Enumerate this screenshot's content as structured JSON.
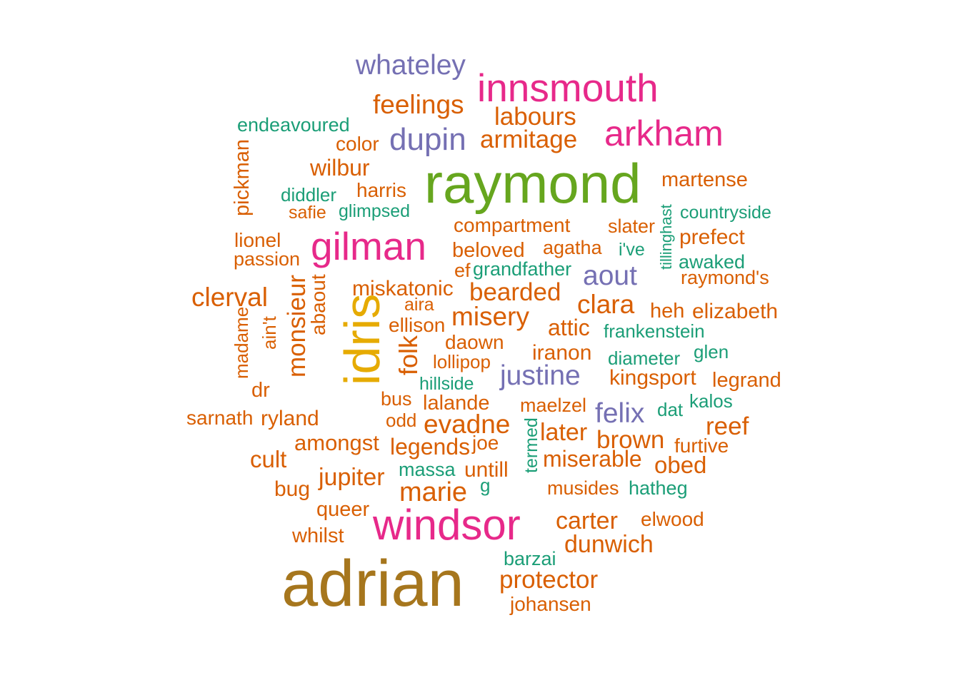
{
  "palette": {
    "teal": "#1B9E77",
    "orange": "#D95F02",
    "purple": "#7570B3",
    "pink": "#E7298A",
    "green": "#66A61E",
    "gold": "#E6AB02",
    "brown": "#A6761D"
  },
  "words": [
    {
      "text": "adrian",
      "color": "brown",
      "rotated": false
    },
    {
      "text": "raymond",
      "color": "green",
      "rotated": false
    },
    {
      "text": "idris",
      "color": "gold",
      "rotated": true
    },
    {
      "text": "windsor",
      "color": "pink",
      "rotated": false
    },
    {
      "text": "gilman",
      "color": "pink",
      "rotated": false
    },
    {
      "text": "innsmouth",
      "color": "pink",
      "rotated": false
    },
    {
      "text": "arkham",
      "color": "pink",
      "rotated": false
    },
    {
      "text": "whateley",
      "color": "purple",
      "rotated": false
    },
    {
      "text": "dupin",
      "color": "purple",
      "rotated": false
    },
    {
      "text": "justine",
      "color": "purple",
      "rotated": false
    },
    {
      "text": "felix",
      "color": "purple",
      "rotated": false
    },
    {
      "text": "aout",
      "color": "purple",
      "rotated": false
    },
    {
      "text": "feelings",
      "color": "orange",
      "rotated": false
    },
    {
      "text": "labours",
      "color": "orange",
      "rotated": false
    },
    {
      "text": "armitage",
      "color": "orange",
      "rotated": false
    },
    {
      "text": "endeavoured",
      "color": "teal",
      "rotated": false
    },
    {
      "text": "color",
      "color": "orange",
      "rotated": false
    },
    {
      "text": "wilbur",
      "color": "orange",
      "rotated": false
    },
    {
      "text": "pickman",
      "color": "orange",
      "rotated": true
    },
    {
      "text": "diddler",
      "color": "teal",
      "rotated": false
    },
    {
      "text": "harris",
      "color": "orange",
      "rotated": false
    },
    {
      "text": "safie",
      "color": "orange",
      "rotated": false
    },
    {
      "text": "glimpsed",
      "color": "teal",
      "rotated": false
    },
    {
      "text": "martense",
      "color": "orange",
      "rotated": false
    },
    {
      "text": "countryside",
      "color": "teal",
      "rotated": false
    },
    {
      "text": "tillinghast",
      "color": "teal",
      "rotated": true
    },
    {
      "text": "compartment",
      "color": "orange",
      "rotated": false
    },
    {
      "text": "slater",
      "color": "orange",
      "rotated": false
    },
    {
      "text": "prefect",
      "color": "orange",
      "rotated": false
    },
    {
      "text": "lionel",
      "color": "orange",
      "rotated": false
    },
    {
      "text": "passion",
      "color": "orange",
      "rotated": false
    },
    {
      "text": "beloved",
      "color": "orange",
      "rotated": false
    },
    {
      "text": "agatha",
      "color": "orange",
      "rotated": false
    },
    {
      "text": "i've",
      "color": "teal",
      "rotated": false
    },
    {
      "text": "awaked",
      "color": "teal",
      "rotated": false
    },
    {
      "text": "ef",
      "color": "orange",
      "rotated": false
    },
    {
      "text": "grandfather",
      "color": "teal",
      "rotated": false
    },
    {
      "text": "raymond's",
      "color": "orange",
      "rotated": false
    },
    {
      "text": "clerval",
      "color": "orange",
      "rotated": false
    },
    {
      "text": "monsieur",
      "color": "orange",
      "rotated": true
    },
    {
      "text": "abaout",
      "color": "orange",
      "rotated": true
    },
    {
      "text": "miskatonic",
      "color": "orange",
      "rotated": false
    },
    {
      "text": "bearded",
      "color": "orange",
      "rotated": false
    },
    {
      "text": "clara",
      "color": "orange",
      "rotated": false
    },
    {
      "text": "heh",
      "color": "orange",
      "rotated": false
    },
    {
      "text": "elizabeth",
      "color": "orange",
      "rotated": false
    },
    {
      "text": "madame",
      "color": "orange",
      "rotated": true
    },
    {
      "text": "ain't",
      "color": "orange",
      "rotated": true
    },
    {
      "text": "aira",
      "color": "orange",
      "rotated": false
    },
    {
      "text": "misery",
      "color": "orange",
      "rotated": false
    },
    {
      "text": "attic",
      "color": "orange",
      "rotated": false
    },
    {
      "text": "frankenstein",
      "color": "teal",
      "rotated": false
    },
    {
      "text": "ellison",
      "color": "orange",
      "rotated": false
    },
    {
      "text": "daown",
      "color": "orange",
      "rotated": false
    },
    {
      "text": "folk",
      "color": "orange",
      "rotated": true
    },
    {
      "text": "iranon",
      "color": "orange",
      "rotated": false
    },
    {
      "text": "diameter",
      "color": "teal",
      "rotated": false
    },
    {
      "text": "glen",
      "color": "teal",
      "rotated": false
    },
    {
      "text": "lollipop",
      "color": "orange",
      "rotated": false
    },
    {
      "text": "kingsport",
      "color": "orange",
      "rotated": false
    },
    {
      "text": "legrand",
      "color": "orange",
      "rotated": false
    },
    {
      "text": "dr",
      "color": "orange",
      "rotated": false
    },
    {
      "text": "hillside",
      "color": "teal",
      "rotated": false
    },
    {
      "text": "bus",
      "color": "orange",
      "rotated": false
    },
    {
      "text": "lalande",
      "color": "orange",
      "rotated": false
    },
    {
      "text": "maelzel",
      "color": "orange",
      "rotated": false
    },
    {
      "text": "dat",
      "color": "teal",
      "rotated": false
    },
    {
      "text": "kalos",
      "color": "teal",
      "rotated": false
    },
    {
      "text": "sarnath",
      "color": "orange",
      "rotated": false
    },
    {
      "text": "ryland",
      "color": "orange",
      "rotated": false
    },
    {
      "text": "odd",
      "color": "orange",
      "rotated": false
    },
    {
      "text": "evadne",
      "color": "orange",
      "rotated": false
    },
    {
      "text": "termed",
      "color": "teal",
      "rotated": true
    },
    {
      "text": "later",
      "color": "orange",
      "rotated": false
    },
    {
      "text": "reef",
      "color": "orange",
      "rotated": false
    },
    {
      "text": "amongst",
      "color": "orange",
      "rotated": false
    },
    {
      "text": "legends",
      "color": "orange",
      "rotated": false
    },
    {
      "text": "joe",
      "color": "orange",
      "rotated": false
    },
    {
      "text": "brown",
      "color": "orange",
      "rotated": false
    },
    {
      "text": "furtive",
      "color": "orange",
      "rotated": false
    },
    {
      "text": "cult",
      "color": "orange",
      "rotated": false
    },
    {
      "text": "miserable",
      "color": "orange",
      "rotated": false
    },
    {
      "text": "obed",
      "color": "orange",
      "rotated": false
    },
    {
      "text": "jupiter",
      "color": "orange",
      "rotated": false
    },
    {
      "text": "massa",
      "color": "teal",
      "rotated": false
    },
    {
      "text": "untill",
      "color": "orange",
      "rotated": false
    },
    {
      "text": "bug",
      "color": "orange",
      "rotated": false
    },
    {
      "text": "marie",
      "color": "orange",
      "rotated": false
    },
    {
      "text": "g",
      "color": "teal",
      "rotated": false
    },
    {
      "text": "musides",
      "color": "orange",
      "rotated": false
    },
    {
      "text": "hatheg",
      "color": "teal",
      "rotated": false
    },
    {
      "text": "queer",
      "color": "orange",
      "rotated": false
    },
    {
      "text": "carter",
      "color": "orange",
      "rotated": false
    },
    {
      "text": "elwood",
      "color": "orange",
      "rotated": false
    },
    {
      "text": "whilst",
      "color": "orange",
      "rotated": false
    },
    {
      "text": "dunwich",
      "color": "orange",
      "rotated": false
    },
    {
      "text": "barzai",
      "color": "teal",
      "rotated": false
    },
    {
      "text": "protector",
      "color": "orange",
      "rotated": false
    },
    {
      "text": "johansen",
      "color": "orange",
      "rotated": false
    }
  ]
}
